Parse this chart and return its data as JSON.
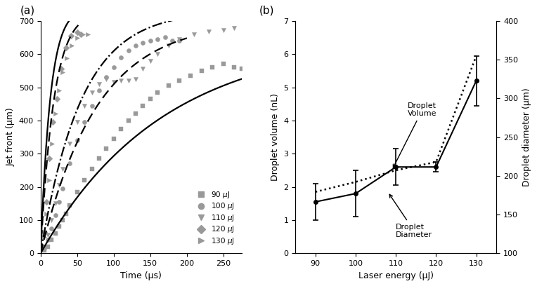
{
  "panel_a": {
    "t90": [
      5,
      10,
      15,
      20,
      25,
      30,
      35,
      40,
      50,
      60,
      70,
      80,
      90,
      100,
      110,
      120,
      130,
      140,
      150,
      160,
      175,
      190,
      205,
      220,
      235,
      250,
      265,
      275
    ],
    "y90": [
      10,
      20,
      40,
      60,
      80,
      100,
      120,
      145,
      185,
      220,
      255,
      285,
      315,
      345,
      375,
      400,
      420,
      445,
      465,
      485,
      505,
      520,
      535,
      550,
      560,
      570,
      560,
      555
    ],
    "t100": [
      5,
      10,
      15,
      20,
      25,
      30,
      40,
      50,
      60,
      70,
      80,
      90,
      100,
      110,
      120,
      130,
      140,
      150,
      160,
      170,
      180,
      190
    ],
    "y100": [
      15,
      40,
      75,
      115,
      155,
      195,
      270,
      340,
      395,
      445,
      490,
      530,
      560,
      590,
      610,
      625,
      635,
      640,
      645,
      650,
      640,
      640
    ],
    "t110": [
      5,
      10,
      15,
      20,
      25,
      30,
      40,
      50,
      60,
      70,
      80,
      90,
      100,
      110,
      120,
      130,
      140,
      150,
      160,
      175,
      190,
      210,
      230,
      250,
      265
    ],
    "y110": [
      20,
      55,
      100,
      150,
      205,
      255,
      330,
      395,
      445,
      485,
      510,
      525,
      515,
      520,
      520,
      525,
      555,
      580,
      600,
      625,
      645,
      660,
      668,
      672,
      678
    ],
    "t120": [
      5,
      8,
      12,
      17,
      22,
      28,
      35,
      42,
      50,
      55
    ],
    "y120": [
      65,
      155,
      285,
      395,
      465,
      555,
      620,
      655,
      665,
      660
    ],
    "t130": [
      5,
      8,
      12,
      16,
      20,
      25,
      30,
      36,
      43,
      50,
      58,
      65
    ],
    "y130": [
      50,
      120,
      220,
      330,
      420,
      490,
      545,
      588,
      625,
      648,
      660,
      660
    ],
    "fit90_A": 650,
    "fit90_k": 0.006,
    "fit100_A": 700,
    "fit100_k": 0.013,
    "fit110_A": 730,
    "fit110_k": 0.018,
    "fit120_A": 730,
    "fit120_k": 0.055,
    "fit130_A": 740,
    "fit130_k": 0.075,
    "marker_color": "#999999",
    "ylabel": "Jet front (μm)",
    "xlabel": "Time (μs)",
    "ylim": [
      0,
      700
    ],
    "xlim": [
      0,
      275
    ],
    "yticks": [
      0,
      100,
      200,
      300,
      400,
      500,
      600,
      700
    ],
    "xticks": [
      0,
      50,
      100,
      150,
      200,
      250
    ]
  },
  "panel_b": {
    "laser_energy": [
      90,
      100,
      110,
      120,
      130
    ],
    "droplet_volume_dotted": [
      1.85,
      2.15,
      2.5,
      2.75,
      5.95
    ],
    "droplet_diameter_solid": [
      1.55,
      1.8,
      2.6,
      2.6,
      5.2
    ],
    "droplet_diameter_err": [
      0.55,
      0.7,
      0.55,
      0.15,
      0.75
    ],
    "diameter_right": [
      155,
      175,
      215,
      210,
      330
    ],
    "diameter_right_err": [
      25,
      25,
      35,
      25,
      55
    ],
    "ylabel_left": "Droplet volume (nL)",
    "ylabel_right": "Droplet diameter (μm)",
    "xlabel": "Laser energy (μJ)",
    "ylim_left": [
      0,
      7
    ],
    "ylim_right": [
      100,
      400
    ],
    "yticks_left": [
      0,
      1,
      2,
      3,
      4,
      5,
      6,
      7
    ],
    "yticks_right": [
      100,
      150,
      200,
      250,
      300,
      350,
      400
    ]
  }
}
